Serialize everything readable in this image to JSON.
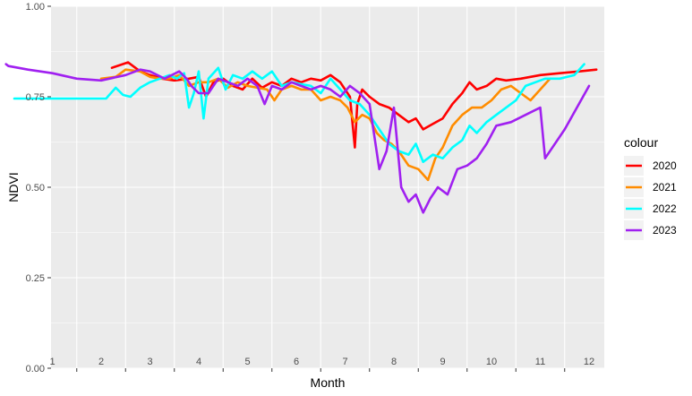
{
  "chart_data": {
    "type": "line",
    "xlabel": "Month",
    "ylabel": "NDVI",
    "xlim": [
      0,
      12.4
    ],
    "ylim": [
      0,
      1
    ],
    "x_ticks": [
      1,
      2,
      3,
      4,
      5,
      6,
      7,
      8,
      9,
      10,
      11,
      12
    ],
    "x_tick_labels": [
      "1",
      "2",
      "3",
      "4",
      "5",
      "6",
      "7",
      "8",
      "9",
      "10",
      "11",
      "12"
    ],
    "y_ticks": [
      0,
      0.25,
      0.5,
      0.75,
      1
    ],
    "y_tick_labels": [
      "0.00",
      "0.25",
      "0.50",
      "0.75",
      "1.00"
    ],
    "grid": true,
    "legend_title": "colour",
    "legend_position": "right",
    "series": [
      {
        "name": "2020",
        "color": "#ff0000",
        "points": [
          [
            2.22,
            0.83
          ],
          [
            2.55,
            0.845
          ],
          [
            2.8,
            0.82
          ],
          [
            3,
            0.81
          ],
          [
            3.25,
            0.8
          ],
          [
            3.5,
            0.795
          ],
          [
            3.8,
            0.8
          ],
          [
            4,
            0.805
          ],
          [
            4.15,
            0.75
          ],
          [
            4.3,
            0.79
          ],
          [
            4.5,
            0.8
          ],
          [
            4.7,
            0.78
          ],
          [
            4.9,
            0.77
          ],
          [
            5.1,
            0.8
          ],
          [
            5.3,
            0.775
          ],
          [
            5.5,
            0.79
          ],
          [
            5.7,
            0.78
          ],
          [
            5.9,
            0.8
          ],
          [
            6.1,
            0.79
          ],
          [
            6.3,
            0.8
          ],
          [
            6.5,
            0.795
          ],
          [
            6.7,
            0.81
          ],
          [
            6.9,
            0.79
          ],
          [
            7.1,
            0.75
          ],
          [
            7.2,
            0.61
          ],
          [
            7.25,
            0.73
          ],
          [
            7.35,
            0.77
          ],
          [
            7.5,
            0.75
          ],
          [
            7.7,
            0.73
          ],
          [
            7.9,
            0.72
          ],
          [
            8.1,
            0.7
          ],
          [
            8.3,
            0.68
          ],
          [
            8.45,
            0.69
          ],
          [
            8.6,
            0.66
          ],
          [
            8.8,
            0.675
          ],
          [
            9.0,
            0.69
          ],
          [
            9.2,
            0.73
          ],
          [
            9.4,
            0.76
          ],
          [
            9.55,
            0.79
          ],
          [
            9.7,
            0.77
          ],
          [
            9.9,
            0.78
          ],
          [
            10.1,
            0.8
          ],
          [
            10.3,
            0.795
          ],
          [
            10.6,
            0.8
          ],
          [
            11,
            0.81
          ],
          [
            11.4,
            0.815
          ],
          [
            11.8,
            0.82
          ],
          [
            12.15,
            0.825
          ]
        ]
      },
      {
        "name": "2021",
        "color": "#ff8c00",
        "points": [
          [
            2.0,
            0.8
          ],
          [
            2.3,
            0.805
          ],
          [
            2.5,
            0.825
          ],
          [
            2.8,
            0.82
          ],
          [
            3.0,
            0.805
          ],
          [
            3.2,
            0.8
          ],
          [
            3.4,
            0.8
          ],
          [
            3.6,
            0.81
          ],
          [
            3.8,
            0.78
          ],
          [
            4.0,
            0.79
          ],
          [
            4.2,
            0.79
          ],
          [
            4.4,
            0.8
          ],
          [
            4.6,
            0.775
          ],
          [
            4.8,
            0.79
          ],
          [
            5.0,
            0.78
          ],
          [
            5.2,
            0.775
          ],
          [
            5.4,
            0.77
          ],
          [
            5.55,
            0.74
          ],
          [
            5.7,
            0.77
          ],
          [
            5.9,
            0.78
          ],
          [
            6.1,
            0.77
          ],
          [
            6.3,
            0.77
          ],
          [
            6.5,
            0.74
          ],
          [
            6.7,
            0.75
          ],
          [
            6.9,
            0.74
          ],
          [
            7.05,
            0.72
          ],
          [
            7.2,
            0.68
          ],
          [
            7.35,
            0.7
          ],
          [
            7.5,
            0.69
          ],
          [
            7.65,
            0.65
          ],
          [
            7.8,
            0.63
          ],
          [
            7.95,
            0.62
          ],
          [
            8.1,
            0.6
          ],
          [
            8.3,
            0.56
          ],
          [
            8.5,
            0.55
          ],
          [
            8.7,
            0.52
          ],
          [
            8.85,
            0.58
          ],
          [
            9.0,
            0.61
          ],
          [
            9.2,
            0.67
          ],
          [
            9.4,
            0.7
          ],
          [
            9.6,
            0.72
          ],
          [
            9.8,
            0.72
          ],
          [
            10.0,
            0.74
          ],
          [
            10.2,
            0.77
          ],
          [
            10.4,
            0.78
          ],
          [
            10.6,
            0.76
          ],
          [
            10.8,
            0.74
          ],
          [
            11.0,
            0.77
          ],
          [
            11.2,
            0.8
          ]
        ]
      },
      {
        "name": "2022",
        "color": "#00ffff",
        "points": [
          [
            0.22,
            0.745
          ],
          [
            1.2,
            0.745
          ],
          [
            1.7,
            0.745
          ],
          [
            2.1,
            0.745
          ],
          [
            2.3,
            0.775
          ],
          [
            2.45,
            0.755
          ],
          [
            2.6,
            0.75
          ],
          [
            2.8,
            0.775
          ],
          [
            3.0,
            0.79
          ],
          [
            3.2,
            0.8
          ],
          [
            3.4,
            0.81
          ],
          [
            3.55,
            0.8
          ],
          [
            3.7,
            0.815
          ],
          [
            3.8,
            0.72
          ],
          [
            3.9,
            0.76
          ],
          [
            4.0,
            0.82
          ],
          [
            4.1,
            0.69
          ],
          [
            4.2,
            0.8
          ],
          [
            4.4,
            0.83
          ],
          [
            4.55,
            0.77
          ],
          [
            4.7,
            0.81
          ],
          [
            4.9,
            0.8
          ],
          [
            5.1,
            0.82
          ],
          [
            5.3,
            0.8
          ],
          [
            5.5,
            0.82
          ],
          [
            5.7,
            0.78
          ],
          [
            5.9,
            0.79
          ],
          [
            6.1,
            0.785
          ],
          [
            6.3,
            0.78
          ],
          [
            6.5,
            0.76
          ],
          [
            6.7,
            0.8
          ],
          [
            6.9,
            0.77
          ],
          [
            7.1,
            0.74
          ],
          [
            7.3,
            0.73
          ],
          [
            7.5,
            0.7
          ],
          [
            7.7,
            0.66
          ],
          [
            7.9,
            0.62
          ],
          [
            8.1,
            0.6
          ],
          [
            8.3,
            0.59
          ],
          [
            8.45,
            0.62
          ],
          [
            8.6,
            0.57
          ],
          [
            8.8,
            0.59
          ],
          [
            9.0,
            0.58
          ],
          [
            9.2,
            0.61
          ],
          [
            9.4,
            0.63
          ],
          [
            9.55,
            0.67
          ],
          [
            9.7,
            0.65
          ],
          [
            9.9,
            0.68
          ],
          [
            10.1,
            0.7
          ],
          [
            10.3,
            0.72
          ],
          [
            10.5,
            0.74
          ],
          [
            10.7,
            0.78
          ],
          [
            10.9,
            0.79
          ],
          [
            11.1,
            0.8
          ],
          [
            11.4,
            0.8
          ],
          [
            11.7,
            0.81
          ],
          [
            11.9,
            0.84
          ]
        ]
      },
      {
        "name": "2023",
        "color": "#a020f0",
        "points": [
          [
            0.05,
            0.84
          ],
          [
            0.1,
            0.835
          ],
          [
            0.5,
            0.825
          ],
          [
            1.0,
            0.815
          ],
          [
            1.5,
            0.8
          ],
          [
            2.0,
            0.795
          ],
          [
            2.5,
            0.81
          ],
          [
            2.8,
            0.825
          ],
          [
            3.0,
            0.82
          ],
          [
            3.3,
            0.8
          ],
          [
            3.6,
            0.82
          ],
          [
            3.75,
            0.8
          ],
          [
            3.85,
            0.78
          ],
          [
            4.0,
            0.76
          ],
          [
            4.2,
            0.76
          ],
          [
            4.4,
            0.8
          ],
          [
            4.6,
            0.79
          ],
          [
            4.8,
            0.78
          ],
          [
            5.0,
            0.8
          ],
          [
            5.2,
            0.78
          ],
          [
            5.35,
            0.73
          ],
          [
            5.5,
            0.78
          ],
          [
            5.7,
            0.77
          ],
          [
            5.9,
            0.79
          ],
          [
            6.1,
            0.78
          ],
          [
            6.3,
            0.77
          ],
          [
            6.5,
            0.78
          ],
          [
            6.7,
            0.77
          ],
          [
            6.9,
            0.75
          ],
          [
            7.1,
            0.78
          ],
          [
            7.3,
            0.76
          ],
          [
            7.5,
            0.73
          ],
          [
            7.7,
            0.55
          ],
          [
            7.85,
            0.6
          ],
          [
            8.0,
            0.72
          ],
          [
            8.15,
            0.5
          ],
          [
            8.3,
            0.46
          ],
          [
            8.45,
            0.48
          ],
          [
            8.6,
            0.43
          ],
          [
            8.75,
            0.47
          ],
          [
            8.9,
            0.5
          ],
          [
            9.1,
            0.48
          ],
          [
            9.3,
            0.55
          ],
          [
            9.5,
            0.56
          ],
          [
            9.7,
            0.58
          ],
          [
            9.9,
            0.62
          ],
          [
            10.1,
            0.67
          ],
          [
            10.4,
            0.68
          ],
          [
            10.7,
            0.7
          ],
          [
            11.0,
            0.72
          ],
          [
            11.1,
            0.58
          ],
          [
            11.5,
            0.66
          ],
          [
            12.0,
            0.78
          ]
        ]
      }
    ]
  }
}
